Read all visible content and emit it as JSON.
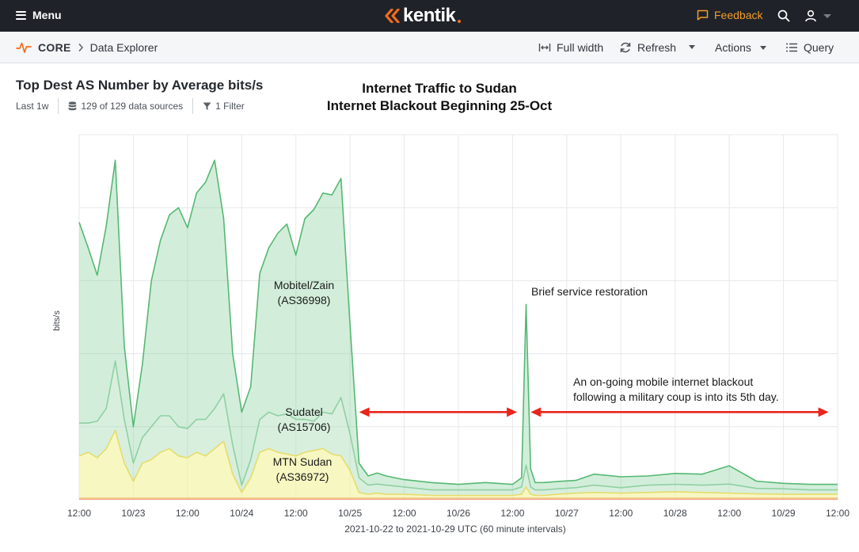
{
  "topbar": {
    "menu_label": "Menu",
    "logo_text": "kentik",
    "feedback_label": "Feedback"
  },
  "breadcrumb": {
    "section": "CORE",
    "page": "Data Explorer"
  },
  "toolbar": {
    "full_width_label": "Full width",
    "refresh_label": "Refresh",
    "actions_label": "Actions",
    "query_label": "Query"
  },
  "panel": {
    "title": "Top Dest AS Number by Average bits/s",
    "time_range": "Last 1w",
    "data_sources": "129 of 129 data sources",
    "filter": "1 Filter"
  },
  "colors": {
    "accent": "#f26b1d",
    "mobitel": "#7fcf95",
    "sudatel": "#a9dcb6",
    "mtn": "#f3f2a2",
    "arrow": "#e8261c"
  },
  "chart_data": {
    "type": "area",
    "title": [
      "Internet Traffic to Sudan",
      "Internet Blackout Beginning 25-Oct"
    ],
    "ylabel": "bits/s",
    "xlabel": "2021-10-22 to 2021-10-29 UTC (60 minute intervals)",
    "x_ticks": [
      "12:00",
      "10/23",
      "12:00",
      "10/24",
      "12:00",
      "10/25",
      "12:00",
      "10/26",
      "12:00",
      "10/27",
      "12:00",
      "10/28",
      "12:00",
      "10/29",
      "12:00"
    ],
    "x_tick_hours": [
      0,
      12,
      24,
      36,
      48,
      60,
      72,
      84,
      96,
      108,
      120,
      132,
      144,
      156,
      168
    ],
    "x_range_hours": [
      0,
      168
    ],
    "ylim": [
      0,
      100
    ],
    "y_gridlines": [
      20,
      40,
      60,
      80,
      100
    ],
    "stacked": true,
    "series": [
      {
        "name": "MTN Sudan (AS36972)",
        "label_lines": [
          "MTN Sudan",
          "(AS36972)"
        ],
        "color": "#f3f2a2",
        "x": [
          0,
          2,
          4,
          6,
          8,
          10,
          12,
          14,
          16,
          18,
          20,
          22,
          24,
          26,
          28,
          30,
          32,
          34,
          36,
          38,
          40,
          42,
          44,
          46,
          48,
          50,
          52,
          54,
          56,
          58,
          60,
          62,
          64,
          66,
          68,
          72,
          78,
          84,
          90,
          96,
          98,
          99,
          100,
          101,
          103,
          106,
          110,
          114,
          120,
          126,
          132,
          138,
          144,
          150,
          156,
          162,
          168
        ],
        "values": [
          12,
          13,
          11.5,
          14,
          19,
          10,
          5,
          10,
          11,
          13,
          14,
          12,
          11.5,
          13,
          12,
          14,
          16,
          7,
          2,
          6,
          13,
          14,
          13,
          12.5,
          12,
          13,
          13.5,
          14,
          12.5,
          12,
          8,
          2,
          1.5,
          1.8,
          1.5,
          1.5,
          1.2,
          1.2,
          1.2,
          1.2,
          1.5,
          3.5,
          1.5,
          1.2,
          1.2,
          1.5,
          1.8,
          2,
          1.8,
          2,
          2.2,
          2,
          1.8,
          1.6,
          1.5,
          1.5,
          1.5
        ]
      },
      {
        "name": "Sudatel (AS15706)",
        "label_lines": [
          "Sudatel",
          "(AS15706)"
        ],
        "color": "#a9dcb6",
        "x": [
          0,
          2,
          4,
          6,
          8,
          10,
          12,
          14,
          16,
          18,
          20,
          22,
          24,
          26,
          28,
          30,
          32,
          34,
          36,
          38,
          40,
          42,
          44,
          46,
          48,
          50,
          52,
          54,
          56,
          58,
          60,
          62,
          64,
          66,
          68,
          72,
          78,
          84,
          90,
          96,
          98,
          99,
          100,
          101,
          103,
          106,
          110,
          114,
          120,
          126,
          132,
          138,
          144,
          150,
          156,
          162,
          168
        ],
        "values": [
          9,
          8,
          10,
          11,
          19,
          12,
          5,
          7,
          9,
          10,
          9,
          8,
          8,
          9,
          10,
          11,
          13,
          8,
          2,
          5,
          9,
          10,
          10,
          11,
          10,
          9,
          8,
          10,
          11,
          16,
          10,
          4,
          2.5,
          2.5,
          2.5,
          2,
          1.5,
          1.5,
          1.5,
          1.5,
          2,
          6,
          2,
          1.5,
          1.5,
          1.5,
          1.5,
          2,
          1.5,
          2,
          2,
          2,
          2.5,
          1.5,
          1.5,
          1.2,
          1.2
        ]
      },
      {
        "name": "Mobitel/Zain (AS36998)",
        "label_lines": [
          "Mobitel/Zain",
          "(AS36998)"
        ],
        "color": "#7fcf95",
        "x": [
          0,
          2,
          4,
          6,
          8,
          10,
          12,
          14,
          16,
          18,
          20,
          22,
          24,
          26,
          28,
          30,
          32,
          34,
          36,
          38,
          40,
          42,
          44,
          46,
          48,
          50,
          52,
          54,
          56,
          58,
          60,
          62,
          64,
          66,
          68,
          72,
          78,
          84,
          90,
          96,
          98,
          99,
          100,
          101,
          103,
          106,
          110,
          114,
          120,
          126,
          132,
          138,
          144,
          150,
          156,
          162,
          168
        ],
        "values": [
          55,
          48,
          40,
          50,
          55,
          20,
          10,
          20,
          40,
          48,
          55,
          60,
          55,
          62,
          65,
          68,
          48,
          25,
          20,
          20,
          40,
          45,
          50,
          52,
          45,
          55,
          58,
          60,
          60,
          60,
          30,
          4,
          2.5,
          3,
          2.5,
          2,
          2,
          1.5,
          2,
          1.5,
          2.5,
          44,
          5,
          2,
          2,
          2,
          2,
          3,
          3,
          2.5,
          3,
          3,
          5,
          2,
          1.5,
          1.5,
          1.5
        ]
      }
    ],
    "annotations": [
      {
        "text": "Brief service restoration",
        "x": 110,
        "y": 56
      },
      {
        "lines": [
          "An on-going mobile internet blackout",
          "following a military coup is into its 5th day."
        ],
        "x": 110,
        "y": 31
      }
    ],
    "arrows": [
      {
        "from": 62,
        "to": 97,
        "y": 24
      },
      {
        "from": 100,
        "to": 166,
        "y": 24
      }
    ]
  }
}
